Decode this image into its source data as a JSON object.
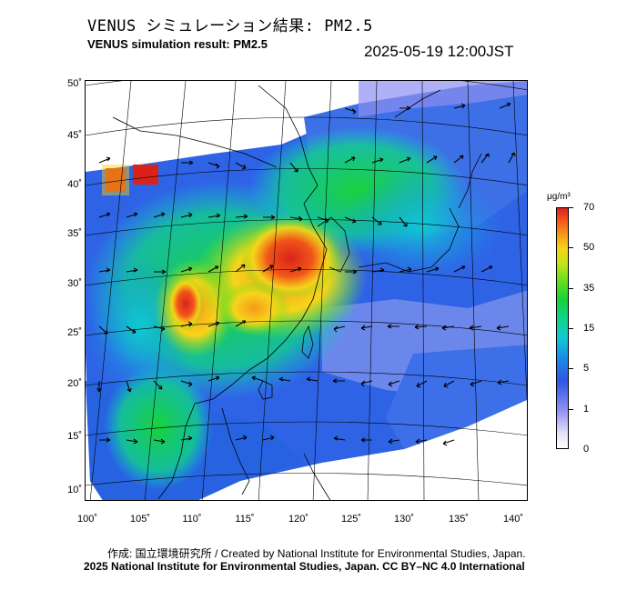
{
  "header": {
    "title_jp": "VENUS シミュレーション結果: PM2.5",
    "title_en": "VENUS simulation result: PM2.5",
    "timestamp": "2025-05-19 12:00JST"
  },
  "map": {
    "lat_labels": [
      "50˚",
      "45˚",
      "40˚",
      "35˚",
      "30˚",
      "25˚",
      "20˚",
      "15˚",
      "10˚"
    ],
    "lon_labels": [
      "100˚",
      "105˚",
      "110˚",
      "115˚",
      "120˚",
      "125˚",
      "130˚",
      "135˚",
      "140˚"
    ],
    "lat_range": [
      10,
      50
    ],
    "lon_range": [
      100,
      140
    ]
  },
  "colorbar": {
    "unit": "μg/m³",
    "labels": [
      "70",
      "50",
      "35",
      "15",
      "5",
      "1",
      "0"
    ],
    "colors": [
      "#d9231a",
      "#f1551a",
      "#f6d51a",
      "#18d23a",
      "#10c9d2",
      "#1a8ee6",
      "#8d8ff1",
      "#ffffff"
    ]
  },
  "footer": {
    "credit": "作成: 国立環境研究所 / Created by National Institute for Environmental Studies, Japan.",
    "copyright": "2025 National Institute for Environmental Studies, Japan. CC BY–NC 4.0 International"
  }
}
